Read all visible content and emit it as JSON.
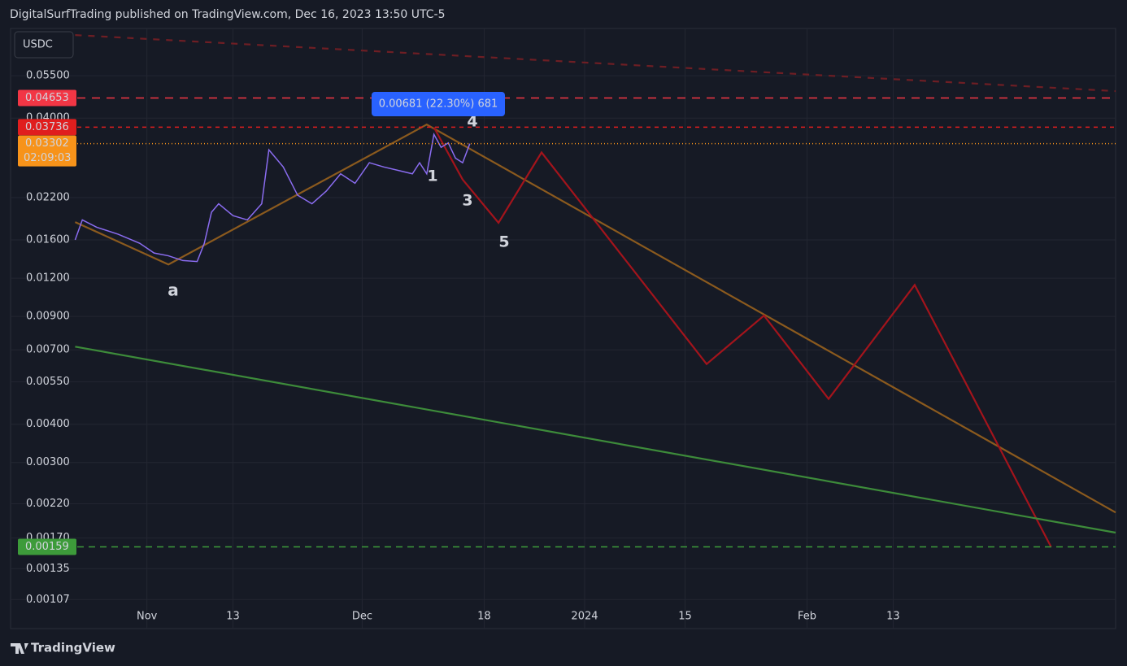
{
  "header": "DigitalSurfTrading published on TradingView.com, Dec 16, 2023 13:50 UTC-5",
  "footer": "TradingView",
  "chart_data": {
    "type": "line",
    "symbol": "USDC",
    "log_scale": true,
    "grid": true,
    "ylim": [
      0.00086,
      0.0785
    ],
    "yticks": [
      {
        "value": 0.055,
        "label": "0.05500"
      },
      {
        "value": 0.04,
        "label": "0.04000"
      },
      {
        "value": 0.022,
        "label": "0.02200"
      },
      {
        "value": 0.016,
        "label": "0.01600"
      },
      {
        "value": 0.012,
        "label": "0.01200"
      },
      {
        "value": 0.009,
        "label": "0.00900"
      },
      {
        "value": 0.007,
        "label": "0.00700"
      },
      {
        "value": 0.0055,
        "label": "0.00550"
      },
      {
        "value": 0.004,
        "label": "0.00400"
      },
      {
        "value": 0.003,
        "label": "0.00300"
      },
      {
        "value": 0.0022,
        "label": "0.00220"
      },
      {
        "value": 0.0017,
        "label": "0.00170"
      },
      {
        "value": 0.00135,
        "label": "0.00135"
      },
      {
        "value": 0.00107,
        "label": "0.00107"
      }
    ],
    "xlim": [
      "2023-10-13",
      "2024-03-15"
    ],
    "xticks": [
      {
        "value": "2023-11-01",
        "label": "Nov"
      },
      {
        "value": "2023-11-13",
        "label": "13"
      },
      {
        "value": "2023-12-01",
        "label": "Dec"
      },
      {
        "value": "2023-12-18",
        "label": "18"
      },
      {
        "value": "2024-01-01",
        "label": "2024"
      },
      {
        "value": "2024-01-15",
        "label": "15"
      },
      {
        "value": "2024-02-01",
        "label": "Feb"
      },
      {
        "value": "2024-02-13",
        "label": "13"
      }
    ],
    "series": [
      {
        "color": "#8a6cf0",
        "x": [
          "2023-10-22",
          "2023-10-23",
          "2023-10-25",
          "2023-10-28",
          "2023-10-31",
          "2023-11-02",
          "2023-11-04",
          "2023-11-06",
          "2023-11-08",
          "2023-11-09",
          "2023-11-10",
          "2023-11-11",
          "2023-11-13",
          "2023-11-15",
          "2023-11-17",
          "2023-11-18",
          "2023-11-20",
          "2023-11-22",
          "2023-11-24",
          "2023-11-26",
          "2023-11-28",
          "2023-11-30",
          "2023-12-02",
          "2023-12-04",
          "2023-12-06",
          "2023-12-08",
          "2023-12-09",
          "2023-12-10",
          "2023-12-11",
          "2023-12-12",
          "2023-12-13",
          "2023-12-14",
          "2023-12-15",
          "2023-12-16"
        ],
        "values": [
          0.016,
          0.0186,
          0.0176,
          0.0167,
          0.0156,
          0.0145,
          0.0142,
          0.0137,
          0.0136,
          0.0156,
          0.0197,
          0.021,
          0.0192,
          0.0186,
          0.021,
          0.0315,
          0.0277,
          0.0224,
          0.021,
          0.0231,
          0.0263,
          0.0245,
          0.0286,
          0.0277,
          0.027,
          0.0263,
          0.0286,
          0.0263,
          0.0354,
          0.0321,
          0.0332,
          0.0296,
          0.0286,
          0.033
        ]
      }
    ],
    "overlays": [
      {
        "color": "#8b5a1e",
        "dash": "none",
        "x": [
          "2023-10-22",
          "2023-11-04",
          "2023-12-10",
          "2024-03-15"
        ],
        "values": [
          0.0183,
          0.0133,
          0.0381,
          0.00206
        ]
      },
      {
        "color": "#a3141c",
        "dash": "none",
        "x": [
          "2023-12-11",
          "2023-12-15",
          "2023-12-20",
          "2023-12-26",
          "2024-01-18",
          "2024-01-26",
          "2024-02-04",
          "2024-02-16",
          "2024-03-06"
        ],
        "values": [
          0.0373,
          0.0252,
          0.0182,
          0.0309,
          0.00629,
          0.00906,
          0.00484,
          0.0114,
          0.00159
        ]
      },
      {
        "color": "#3d8b3a",
        "dash": "none",
        "x": [
          "2023-10-22",
          "2024-03-15"
        ],
        "values": [
          0.00717,
          0.00177
        ]
      },
      {
        "color": "#6e1e24",
        "dash": "8 8",
        "x": [
          "2023-10-22",
          "2024-03-15"
        ],
        "values": [
          0.0747,
          0.049
        ]
      }
    ],
    "levels": [
      {
        "value": 0.04653,
        "color": "#f23645",
        "dash": "10 8"
      },
      {
        "value": 0.03736,
        "color": "#e01e1e",
        "dash": "5 5"
      },
      {
        "value": 0.03302,
        "color": "#f7931a",
        "dash": "1 3",
        "countdown": "02:09:03"
      },
      {
        "value": 0.00159,
        "color": "#3d9b3a",
        "dash": "8 6"
      }
    ],
    "annotations": [
      "a",
      "1",
      "3",
      "4",
      "5",
      "0.00681 (22.30%) 681"
    ]
  }
}
